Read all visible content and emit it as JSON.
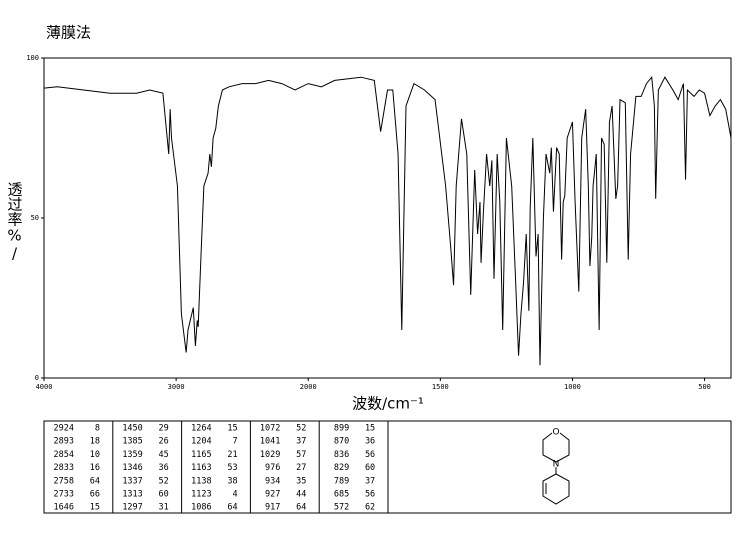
{
  "chart_data": {
    "type": "line",
    "title": "薄膜法",
    "xlabel": "波数/cm⁻¹",
    "ylabel": "透过率%/",
    "xlim": [
      4000,
      400
    ],
    "xticks": [
      4000,
      3000,
      2000,
      1500,
      1000,
      500
    ],
    "x_scale_break": 2000,
    "x_scale_factor_below_break": 2,
    "ylim": [
      0,
      100
    ],
    "yticks": [
      0,
      50,
      100
    ],
    "color": "#000000",
    "x": [
      4000,
      3900,
      3700,
      3500,
      3300,
      3200,
      3100,
      3056,
      3045,
      3035,
      2990,
      2960,
      2924,
      2910,
      2893,
      2870,
      2854,
      2840,
      2833,
      2810,
      2790,
      2758,
      2745,
      2733,
      2720,
      2700,
      2680,
      2650,
      2600,
      2500,
      2400,
      2300,
      2200,
      2100,
      2000,
      1950,
      1900,
      1800,
      1750,
      1726,
      1700,
      1680,
      1660,
      1646,
      1630,
      1600,
      1560,
      1520,
      1480,
      1460,
      1450,
      1440,
      1420,
      1400,
      1385,
      1370,
      1359,
      1350,
      1346,
      1337,
      1325,
      1313,
      1305,
      1297,
      1285,
      1275,
      1264,
      1250,
      1230,
      1215,
      1204,
      1195,
      1185,
      1175,
      1165,
      1160,
      1150,
      1138,
      1130,
      1123,
      1110,
      1100,
      1086,
      1080,
      1072,
      1060,
      1050,
      1041,
      1035,
      1029,
      1020,
      1000,
      990,
      976,
      965,
      950,
      940,
      934,
      927,
      922,
      917,
      910,
      899,
      890,
      880,
      870,
      860,
      850,
      836,
      829,
      820,
      800,
      789,
      780,
      760,
      740,
      720,
      700,
      690,
      685,
      675,
      650,
      620,
      600,
      580,
      572,
      565,
      540,
      520,
      500,
      480,
      460,
      440,
      420,
      400
    ],
    "values": [
      90.6,
      91,
      90,
      89,
      89,
      90,
      89,
      70,
      84,
      75,
      60,
      20,
      8,
      15,
      18,
      22,
      10,
      18,
      16,
      40,
      60,
      64,
      70,
      66,
      75,
      78,
      85,
      90,
      91,
      92,
      92,
      93,
      92,
      90,
      92,
      91,
      93,
      94,
      93,
      77,
      90,
      90,
      70,
      15,
      85,
      92,
      90,
      87,
      60,
      40,
      29,
      60,
      81,
      70,
      26,
      65,
      45,
      55,
      36,
      52,
      70,
      60,
      68,
      31,
      70,
      55,
      15,
      75,
      60,
      30,
      7,
      20,
      30,
      45,
      21,
      53,
      75,
      38,
      45,
      4,
      50,
      70,
      64,
      72,
      52,
      72,
      70,
      37,
      55,
      57,
      75,
      80,
      55,
      27,
      75,
      84,
      60,
      35,
      44,
      60,
      64,
      70,
      15,
      75,
      73,
      36,
      80,
      85,
      56,
      60,
      87,
      86,
      37,
      70,
      88,
      88,
      92,
      94,
      85,
      56,
      90,
      94,
      90,
      87,
      92,
      62,
      90,
      88,
      90,
      89,
      82,
      85,
      87,
      84,
      75
    ]
  },
  "peak_table": {
    "columns": [
      [
        [
          2924,
          8
        ],
        [
          2893,
          18
        ],
        [
          2854,
          10
        ],
        [
          2833,
          16
        ],
        [
          2758,
          64
        ],
        [
          2733,
          66
        ],
        [
          1646,
          15
        ]
      ],
      [
        [
          1450,
          29
        ],
        [
          1385,
          26
        ],
        [
          1359,
          45
        ],
        [
          1346,
          36
        ],
        [
          1337,
          52
        ],
        [
          1313,
          60
        ],
        [
          1297,
          31
        ]
      ],
      [
        [
          1264,
          15
        ],
        [
          1204,
          7
        ],
        [
          1165,
          21
        ],
        [
          1163,
          53
        ],
        [
          1138,
          38
        ],
        [
          1123,
          4
        ],
        [
          1086,
          64
        ]
      ],
      [
        [
          1072,
          52
        ],
        [
          1041,
          37
        ],
        [
          1029,
          57
        ],
        [
          976,
          27
        ],
        [
          934,
          35
        ],
        [
          927,
          44
        ],
        [
          917,
          64
        ]
      ],
      [
        [
          899,
          15
        ],
        [
          870,
          36
        ],
        [
          836,
          56
        ],
        [
          829,
          60
        ],
        [
          789,
          37
        ],
        [
          685,
          56
        ],
        [
          572,
          62
        ]
      ]
    ]
  },
  "structure": {
    "atoms": [
      "O",
      "N"
    ]
  }
}
